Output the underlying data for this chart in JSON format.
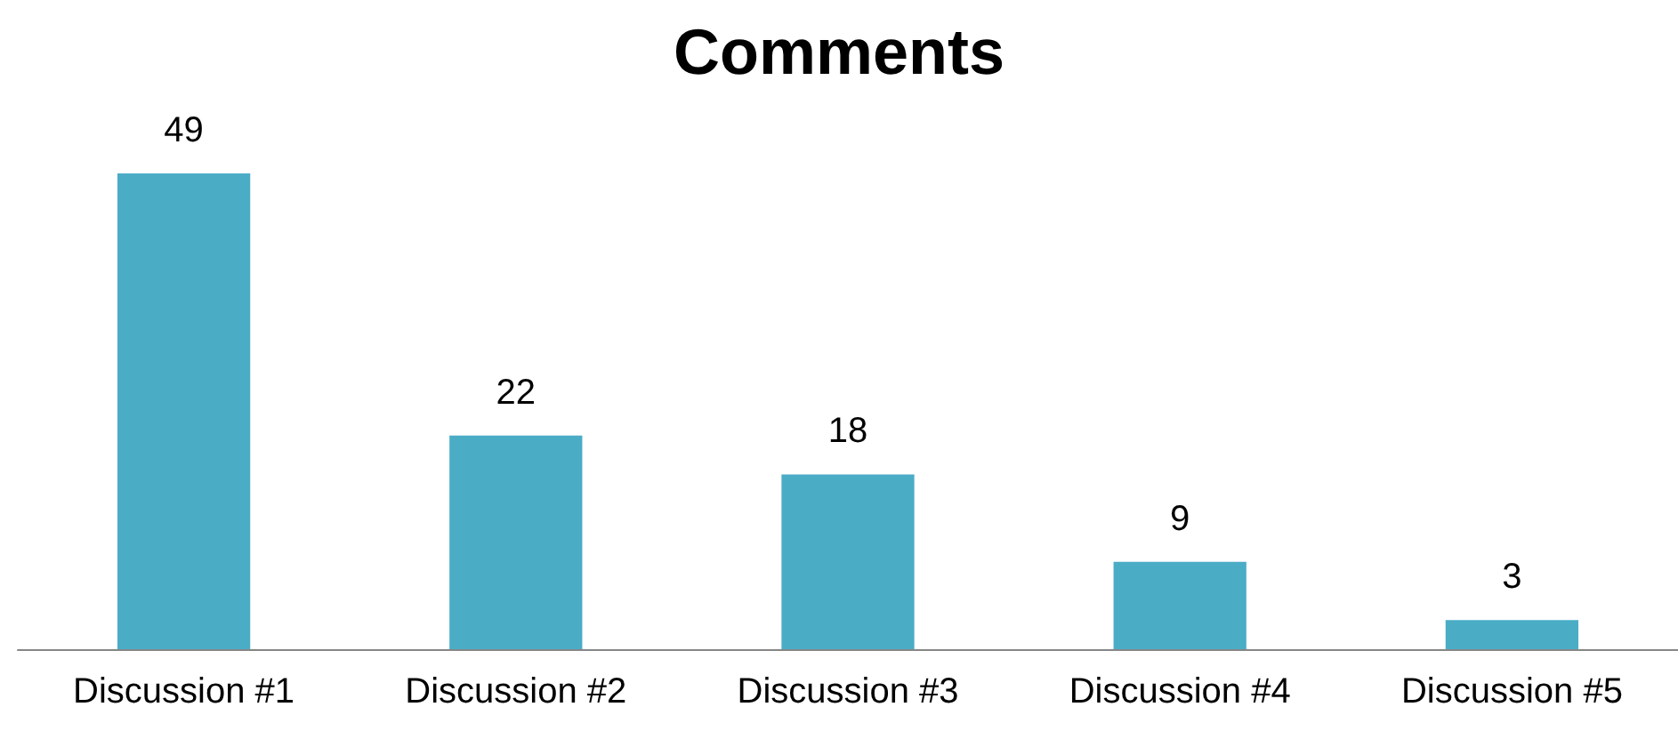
{
  "chart_data": {
    "type": "bar",
    "title": "Comments",
    "categories": [
      "Discussion #1",
      "Discussion #2",
      "Discussion #3",
      "Discussion #4",
      "Discussion #5"
    ],
    "values": [
      49,
      22,
      18,
      9,
      3
    ],
    "color": "#4bacc6",
    "data_labels": true
  }
}
